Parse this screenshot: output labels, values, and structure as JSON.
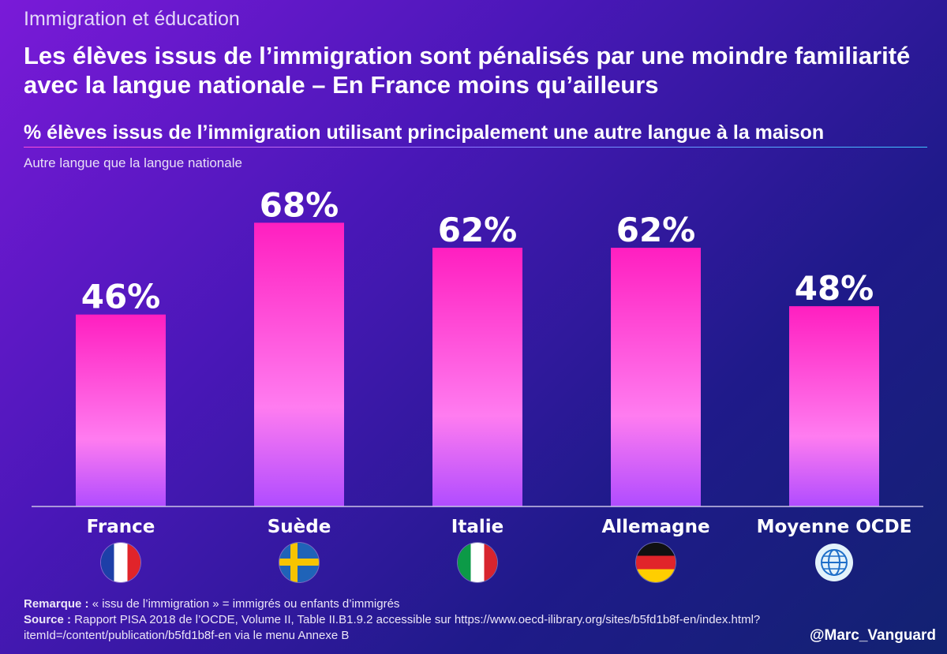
{
  "kicker": "Immigration et éducation",
  "title": "Les élèves issus de l’immigration sont pénalisés par une moindre familiarité avec la langue nationale – En France moins qu’ailleurs",
  "subtitle": "% élèves issus de l’immigration utilisant principalement une autre langue à la maison",
  "chart_data": {
    "type": "bar",
    "ylabel": "Autre langue que la langue nationale",
    "categories": [
      "France",
      "Suède",
      "Italie",
      "Allemagne",
      "Moyenne OCDE"
    ],
    "values": [
      46,
      68,
      62,
      62,
      48
    ],
    "value_labels": [
      "46%",
      "68%",
      "62%",
      "62%",
      "48%"
    ],
    "ylim": [
      0,
      75
    ],
    "grid": false,
    "legend": "none",
    "bar_gradient": {
      "top": "#ff1fc0",
      "mid": "#ff7cf0",
      "bottom": "#b04cff"
    }
  },
  "flags": [
    "france-flag-icon",
    "sweden-flag-icon",
    "italy-flag-icon",
    "germany-flag-icon",
    "globe-icon"
  ],
  "notes": {
    "remark_label": "Remarque :",
    "remark_text": " « issu de l’immigration » = immigrés ou enfants d’immigrés",
    "source_label": "Source :",
    "source_text": " Rapport PISA 2018 de l’OCDE, Volume II, Table II.B1.9.2 accessible sur https://www.oecd-ilibrary.org/sites/b5fd1b8f-en/index.html?itemId=/content/publication/b5fd1b8f-en via le menu Annexe B"
  },
  "handle": "@Marc_Vanguard"
}
